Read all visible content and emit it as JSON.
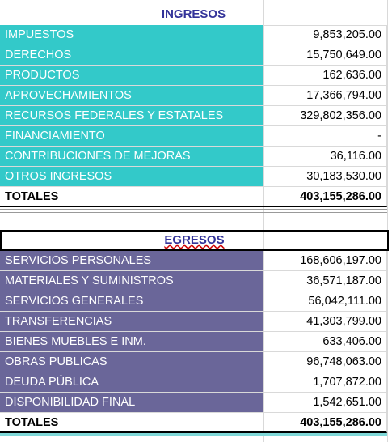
{
  "ingresos": {
    "title": "INGRESOS",
    "rows": [
      [
        "IMPUESTOS",
        "9,853,205.00"
      ],
      [
        "DERECHOS",
        "15,750,649.00"
      ],
      [
        "PRODUCTOS",
        "162,636.00"
      ],
      [
        "APROVECHAMIENTOS",
        "17,366,794.00"
      ],
      [
        "RECURSOS FEDERALES Y ESTATALES",
        "329,802,356.00"
      ],
      [
        "FINANCIAMIENTO",
        "-"
      ],
      [
        "CONTRIBUCIONES DE MEJORAS",
        "36,116.00"
      ],
      [
        "OTROS INGRESOS",
        "30,183,530.00"
      ]
    ],
    "total": [
      "TOTALES",
      "403,155,286.00"
    ]
  },
  "egresos": {
    "title": "EGRESOS",
    "rows": [
      [
        "SERVICIOS PERSONALES",
        "168,606,197.00"
      ],
      [
        "MATERIALES Y SUMINISTROS",
        "36,571,187.00"
      ],
      [
        "SERVICIOS GENERALES",
        "56,042,111.00"
      ],
      [
        "TRANSFERENCIAS",
        "41,303,799.00"
      ],
      [
        "BIENES MUEBLES E INM.",
        "633,406.00"
      ],
      [
        "OBRAS PUBLICAS",
        "96,748,063.00"
      ],
      [
        "DEUDA PÚBLICA",
        "1,707,872.00"
      ],
      [
        "DISPONIBILIDAD FINAL",
        "1,542,651.00"
      ]
    ],
    "total": [
      "TOTALES",
      "403,155,286.00"
    ]
  }
}
